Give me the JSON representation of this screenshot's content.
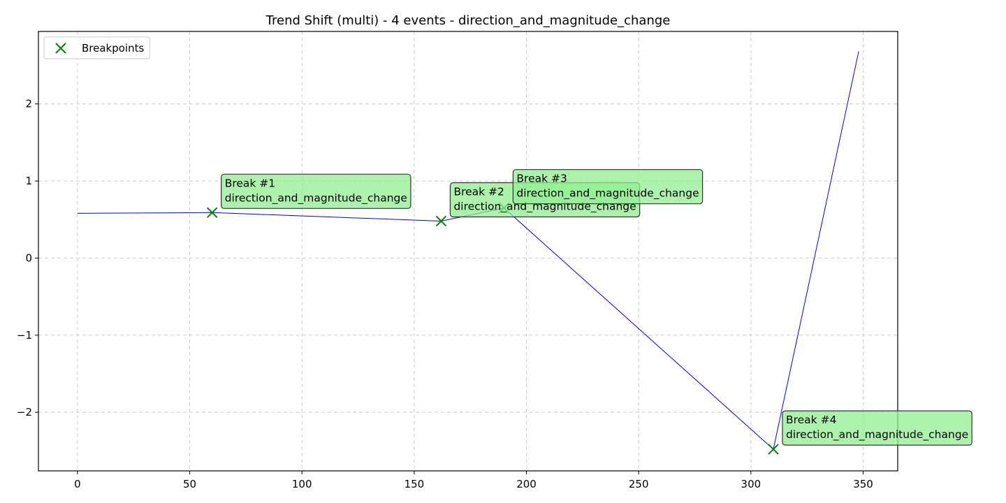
{
  "chart_data": {
    "type": "line",
    "title": "Trend Shift (multi) - 4 events - direction_and_magnitude_change",
    "xlabel": "",
    "ylabel": "",
    "xlim": [
      -17.4,
      365.4
    ],
    "ylim": [
      -2.76,
      2.94
    ],
    "x_ticks": [
      0,
      50,
      100,
      150,
      200,
      250,
      300,
      350
    ],
    "y_ticks": [
      -2,
      -1,
      0,
      1,
      2
    ],
    "y_tick_labels": [
      "−2",
      "−1",
      "0",
      "1",
      "2"
    ],
    "grid": true,
    "grid_style": "dashed",
    "series": [
      {
        "color": "#0000ff",
        "points": [
          [
            0,
            0.58
          ],
          [
            60,
            0.59
          ],
          [
            162,
            0.48
          ],
          [
            190,
            0.65
          ],
          [
            310,
            -2.48
          ],
          [
            348,
            2.68
          ]
        ]
      }
    ],
    "breakpoints": {
      "label": "Breakpoints",
      "marker": "x",
      "color": "#008000",
      "points": [
        [
          60,
          0.59
        ],
        [
          162,
          0.48
        ],
        [
          190,
          0.65
        ],
        [
          310,
          -2.48
        ]
      ]
    },
    "annotations": [
      {
        "title": "Break #1",
        "text": "direction_and_magnitude_change",
        "x": 60,
        "y": 0.59
      },
      {
        "title": "Break #2",
        "text": "direction_and_magnitude_change",
        "x": 162,
        "y": 0.48
      },
      {
        "title": "Break #3",
        "text": "direction_and_magnitude_change",
        "x": 190,
        "y": 0.65
      },
      {
        "title": "Break #4",
        "text": "direction_and_magnitude_change",
        "x": 310,
        "y": -2.48
      }
    ],
    "annotation_box_fill": "#90ee90",
    "legend": {
      "position": "upper-left",
      "entries": [
        "Breakpoints"
      ]
    }
  }
}
